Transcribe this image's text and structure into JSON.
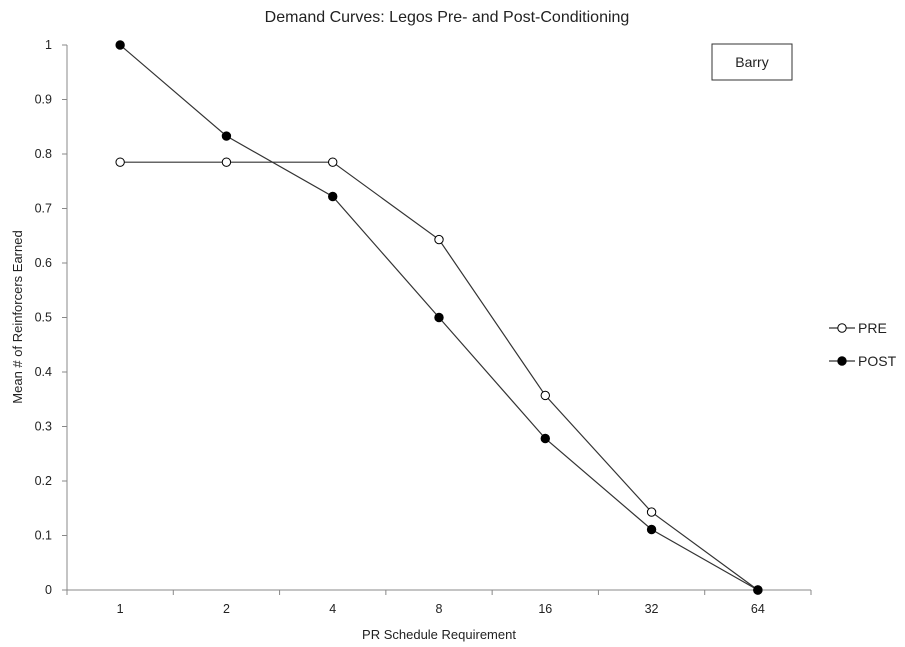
{
  "chart_data": {
    "type": "line",
    "title": "Demand Curves: Legos Pre- and Post-Conditioning",
    "xlabel": "PR Schedule Requirement",
    "ylabel": "Mean # of Reinforcers Earned",
    "categories": [
      "1",
      "2",
      "4",
      "8",
      "16",
      "32",
      "64"
    ],
    "ylim": [
      0,
      1
    ],
    "yticks": [
      "0",
      "0.1",
      "0.2",
      "0.3",
      "0.4",
      "0.5",
      "0.6",
      "0.7",
      "0.8",
      "0.9",
      "1"
    ],
    "grid": false,
    "legend_position": "right",
    "annotation": "Barry",
    "series": [
      {
        "name": "PRE",
        "marker": "open-circle",
        "values": [
          0.785,
          0.785,
          0.785,
          0.643,
          0.357,
          0.143,
          0.0
        ]
      },
      {
        "name": "POST",
        "marker": "filled-circle",
        "values": [
          1.0,
          0.833,
          0.722,
          0.5,
          0.278,
          0.111,
          0.0
        ]
      }
    ]
  }
}
